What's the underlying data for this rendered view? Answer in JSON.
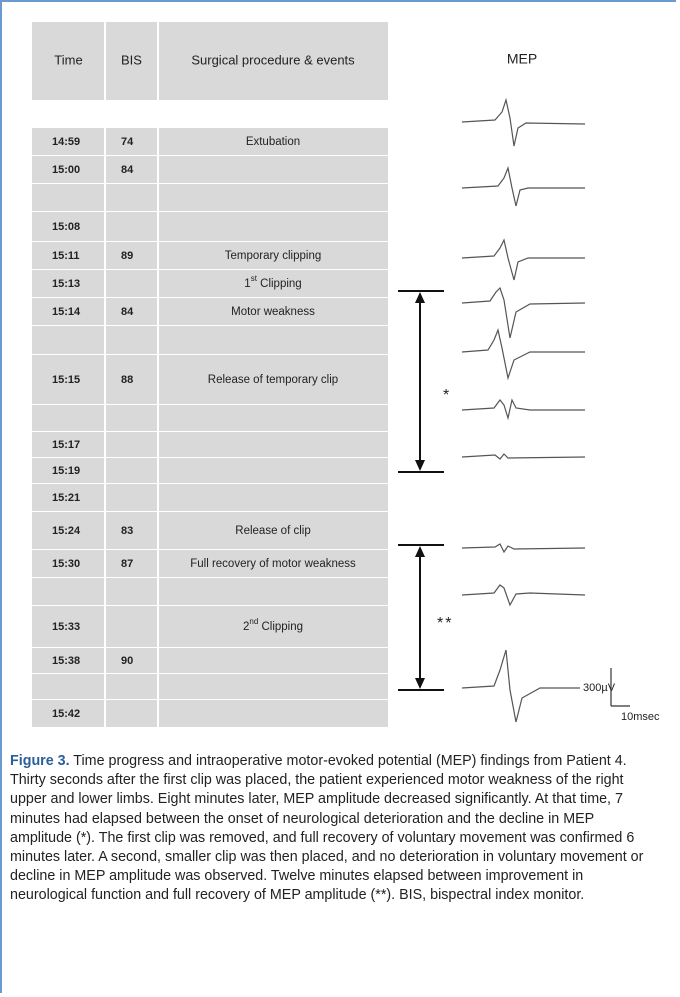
{
  "figure": {
    "table": {
      "headers": [
        "Time",
        "BIS",
        "Surgical procedure & events"
      ],
      "rows": [
        {
          "time": "14:59",
          "bis": 74,
          "event": "Extubation"
        },
        {
          "time": "15:00",
          "bis": 84
        },
        {},
        {
          "time": "15:08"
        },
        {
          "time": "15:11",
          "bis": 89,
          "event": "Temporary clipping"
        },
        {
          "time": "15:13",
          "event": {
            "num": "1",
            "sup": "st",
            "text": " Clipping"
          }
        },
        {
          "time": "15:14",
          "bis": 84,
          "event": "Motor weakness"
        },
        {},
        {
          "time": "15:15",
          "bis": 88,
          "event": "Release of temporary clip"
        },
        {},
        {
          "time": "15:17"
        },
        {
          "time": "15:19"
        },
        {
          "time": "15:21"
        },
        {
          "time": "15:24",
          "bis": 83,
          "event": "Release of clip"
        },
        {
          "time": "15:30",
          "bis": 87,
          "event": "Full recovery of motor weakness"
        },
        {},
        {
          "time": "15:33",
          "event": {
            "num": "2",
            "sup": "nd",
            "text": " Clipping"
          }
        },
        {
          "time": "15:38",
          "bis": 90
        },
        {},
        {
          "time": "15:42"
        }
      ]
    },
    "mep_heading": "MEP",
    "markers": [
      "*",
      "**"
    ],
    "scale": {
      "amplitude": "300µV",
      "time": "10msec"
    },
    "caption": {
      "label": "Figure 3.",
      "text": " Time progress and intraoperative motor-evoked potential (MEP) findings from Patient 4. Thirty seconds after the first clip was placed, the patient experienced motor weakness of the right upper and lower limbs. Eight minutes later, MEP amplitude decreased significantly. At that time, 7 minutes had elapsed between the onset of neurological deterioration and the decline in MEP amplitude (*). The first clip was removed, and full recovery of voluntary movement was confirmed 6 minutes later. A second, smaller clip was then placed, and no deterioration in voluntary movement or decline in MEP amplitude was observed. Twelve minutes elapsed between improvement in neurological function and full recovery of MEP amplitude (**). BIS, bispectral index monitor."
    }
  }
}
